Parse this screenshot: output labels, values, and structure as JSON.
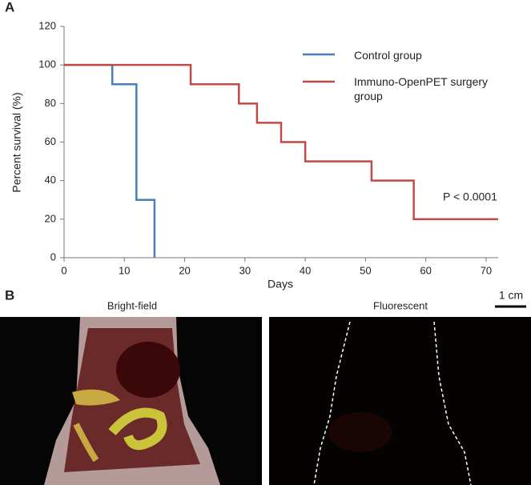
{
  "chart_data": {
    "type": "step",
    "panel_label": "A",
    "x_label": "Days",
    "y_label": "Percent survival (%)",
    "annotation": "P < 0.0001",
    "xlim": [
      0,
      72
    ],
    "xticks": [
      0,
      10,
      20,
      30,
      40,
      50,
      60,
      70
    ],
    "ylim": [
      0,
      120
    ],
    "yticks": [
      0,
      20,
      40,
      60,
      80,
      100,
      120
    ],
    "series": [
      {
        "name": "Control group",
        "color": "#4a7ebb",
        "x": [
          0,
          8,
          12,
          15
        ],
        "values": [
          100,
          90,
          30,
          0
        ]
      },
      {
        "name": "Immuno-OpenPET surgery group",
        "color": "#be4b48",
        "x": [
          0,
          21,
          29,
          32,
          36,
          40,
          51,
          58,
          72
        ],
        "values": [
          100,
          90,
          80,
          70,
          60,
          50,
          40,
          20,
          20
        ]
      }
    ]
  },
  "panel_b": {
    "label": "B",
    "scale_bar": "1 cm",
    "images": [
      "Bright-field",
      "Fluorescent"
    ]
  }
}
